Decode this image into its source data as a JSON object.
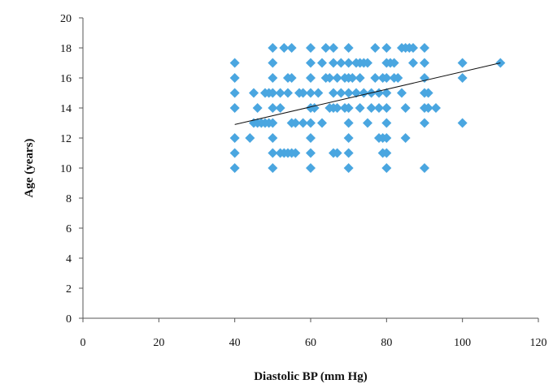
{
  "chart_data": {
    "type": "scatter",
    "title": "",
    "xlabel": "Diastolic  BP (mm Hg)",
    "ylabel": "Age (years)",
    "xlim": [
      0,
      120
    ],
    "ylim": [
      0,
      20
    ],
    "xticks": [
      0,
      20,
      40,
      60,
      80,
      100,
      120
    ],
    "yticks": [
      0,
      2,
      4,
      6,
      8,
      10,
      12,
      14,
      16,
      18,
      20
    ],
    "grid": false,
    "legend": "none",
    "marker_color": "#4aa6e0",
    "trendline": {
      "style": "solid",
      "color": "#111111",
      "from": [
        40,
        12.9
      ],
      "to": [
        110,
        17.0
      ]
    },
    "series": [
      {
        "points": [
          [
            40,
            10
          ],
          [
            40,
            11
          ],
          [
            40,
            12
          ],
          [
            40,
            14
          ],
          [
            40,
            15
          ],
          [
            40,
            16
          ],
          [
            40,
            17
          ],
          [
            44,
            12
          ],
          [
            45,
            13
          ],
          [
            45,
            15
          ],
          [
            46,
            13
          ],
          [
            46,
            14
          ],
          [
            47,
            13
          ],
          [
            48,
            13
          ],
          [
            48,
            15
          ],
          [
            49,
            13
          ],
          [
            49,
            15
          ],
          [
            50,
            10
          ],
          [
            50,
            11
          ],
          [
            50,
            12
          ],
          [
            50,
            13
          ],
          [
            50,
            14
          ],
          [
            50,
            15
          ],
          [
            50,
            16
          ],
          [
            50,
            17
          ],
          [
            50,
            18
          ],
          [
            52,
            11
          ],
          [
            52,
            14
          ],
          [
            52,
            15
          ],
          [
            53,
            11
          ],
          [
            53,
            18
          ],
          [
            54,
            11
          ],
          [
            54,
            15
          ],
          [
            54,
            16
          ],
          [
            55,
            11
          ],
          [
            55,
            13
          ],
          [
            55,
            16
          ],
          [
            55,
            18
          ],
          [
            56,
            11
          ],
          [
            56,
            13
          ],
          [
            57,
            15
          ],
          [
            58,
            13
          ],
          [
            58,
            15
          ],
          [
            60,
            10
          ],
          [
            60,
            11
          ],
          [
            60,
            12
          ],
          [
            60,
            13
          ],
          [
            60,
            14
          ],
          [
            60,
            15
          ],
          [
            60,
            16
          ],
          [
            60,
            17
          ],
          [
            60,
            18
          ],
          [
            61,
            14
          ],
          [
            62,
            15
          ],
          [
            63,
            13
          ],
          [
            63,
            17
          ],
          [
            64,
            16
          ],
          [
            64,
            18
          ],
          [
            65,
            14
          ],
          [
            65,
            16
          ],
          [
            66,
            11
          ],
          [
            66,
            14
          ],
          [
            66,
            15
          ],
          [
            66,
            17
          ],
          [
            66,
            18
          ],
          [
            67,
            11
          ],
          [
            67,
            14
          ],
          [
            67,
            16
          ],
          [
            68,
            15
          ],
          [
            68,
            17
          ],
          [
            69,
            14
          ],
          [
            69,
            16
          ],
          [
            70,
            10
          ],
          [
            70,
            11
          ],
          [
            70,
            12
          ],
          [
            70,
            13
          ],
          [
            70,
            14
          ],
          [
            70,
            15
          ],
          [
            70,
            16
          ],
          [
            70,
            17
          ],
          [
            70,
            18
          ],
          [
            71,
            16
          ],
          [
            72,
            15
          ],
          [
            72,
            17
          ],
          [
            73,
            14
          ],
          [
            73,
            16
          ],
          [
            73,
            17
          ],
          [
            74,
            15
          ],
          [
            74,
            17
          ],
          [
            75,
            17
          ],
          [
            75,
            13
          ],
          [
            76,
            14
          ],
          [
            76,
            15
          ],
          [
            77,
            16
          ],
          [
            77,
            18
          ],
          [
            78,
            12
          ],
          [
            78,
            14
          ],
          [
            78,
            15
          ],
          [
            79,
            11
          ],
          [
            79,
            12
          ],
          [
            79,
            16
          ],
          [
            80,
            10
          ],
          [
            80,
            11
          ],
          [
            80,
            12
          ],
          [
            80,
            13
          ],
          [
            80,
            14
          ],
          [
            80,
            15
          ],
          [
            80,
            16
          ],
          [
            80,
            17
          ],
          [
            80,
            18
          ],
          [
            81,
            17
          ],
          [
            82,
            16
          ],
          [
            82,
            17
          ],
          [
            83,
            16
          ],
          [
            84,
            15
          ],
          [
            84,
            18
          ],
          [
            85,
            12
          ],
          [
            85,
            14
          ],
          [
            85,
            18
          ],
          [
            86,
            18
          ],
          [
            87,
            17
          ],
          [
            87,
            18
          ],
          [
            90,
            10
          ],
          [
            90,
            13
          ],
          [
            90,
            14
          ],
          [
            90,
            15
          ],
          [
            90,
            16
          ],
          [
            90,
            17
          ],
          [
            90,
            18
          ],
          [
            91,
            14
          ],
          [
            91,
            15
          ],
          [
            93,
            14
          ],
          [
            100,
            13
          ],
          [
            100,
            16
          ],
          [
            100,
            17
          ],
          [
            110,
            17
          ]
        ]
      }
    ]
  }
}
